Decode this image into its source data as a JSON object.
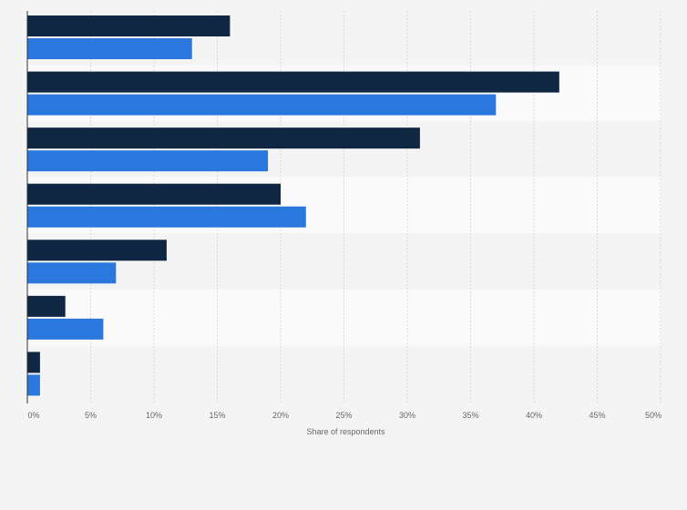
{
  "chart_data": {
    "type": "bar",
    "orientation": "horizontal",
    "title": "",
    "xlabel": "Share of respondents",
    "ylabel": "",
    "xlim": [
      0,
      50
    ],
    "x_ticks": [
      0,
      5,
      10,
      15,
      20,
      25,
      30,
      35,
      40,
      45,
      50
    ],
    "x_tick_labels": [
      "0%",
      "5%",
      "10%",
      "15%",
      "20%",
      "25%",
      "30%",
      "35%",
      "40%",
      "45%",
      "50%"
    ],
    "categories": [
      "",
      "",
      "",
      "",
      "",
      "",
      ""
    ],
    "series": [
      {
        "color": "#0f2742",
        "values": [
          16,
          42,
          31,
          20,
          11,
          3,
          1
        ]
      },
      {
        "color": "#2a77dd",
        "values": [
          13,
          37,
          19,
          22,
          7,
          6,
          1
        ]
      }
    ],
    "grid": true,
    "legend": "none",
    "colors": {
      "band_odd": "#f4f4f5",
      "band_even": "#fafafa",
      "grid": "#d5d8dc",
      "axis": "#333333"
    }
  }
}
